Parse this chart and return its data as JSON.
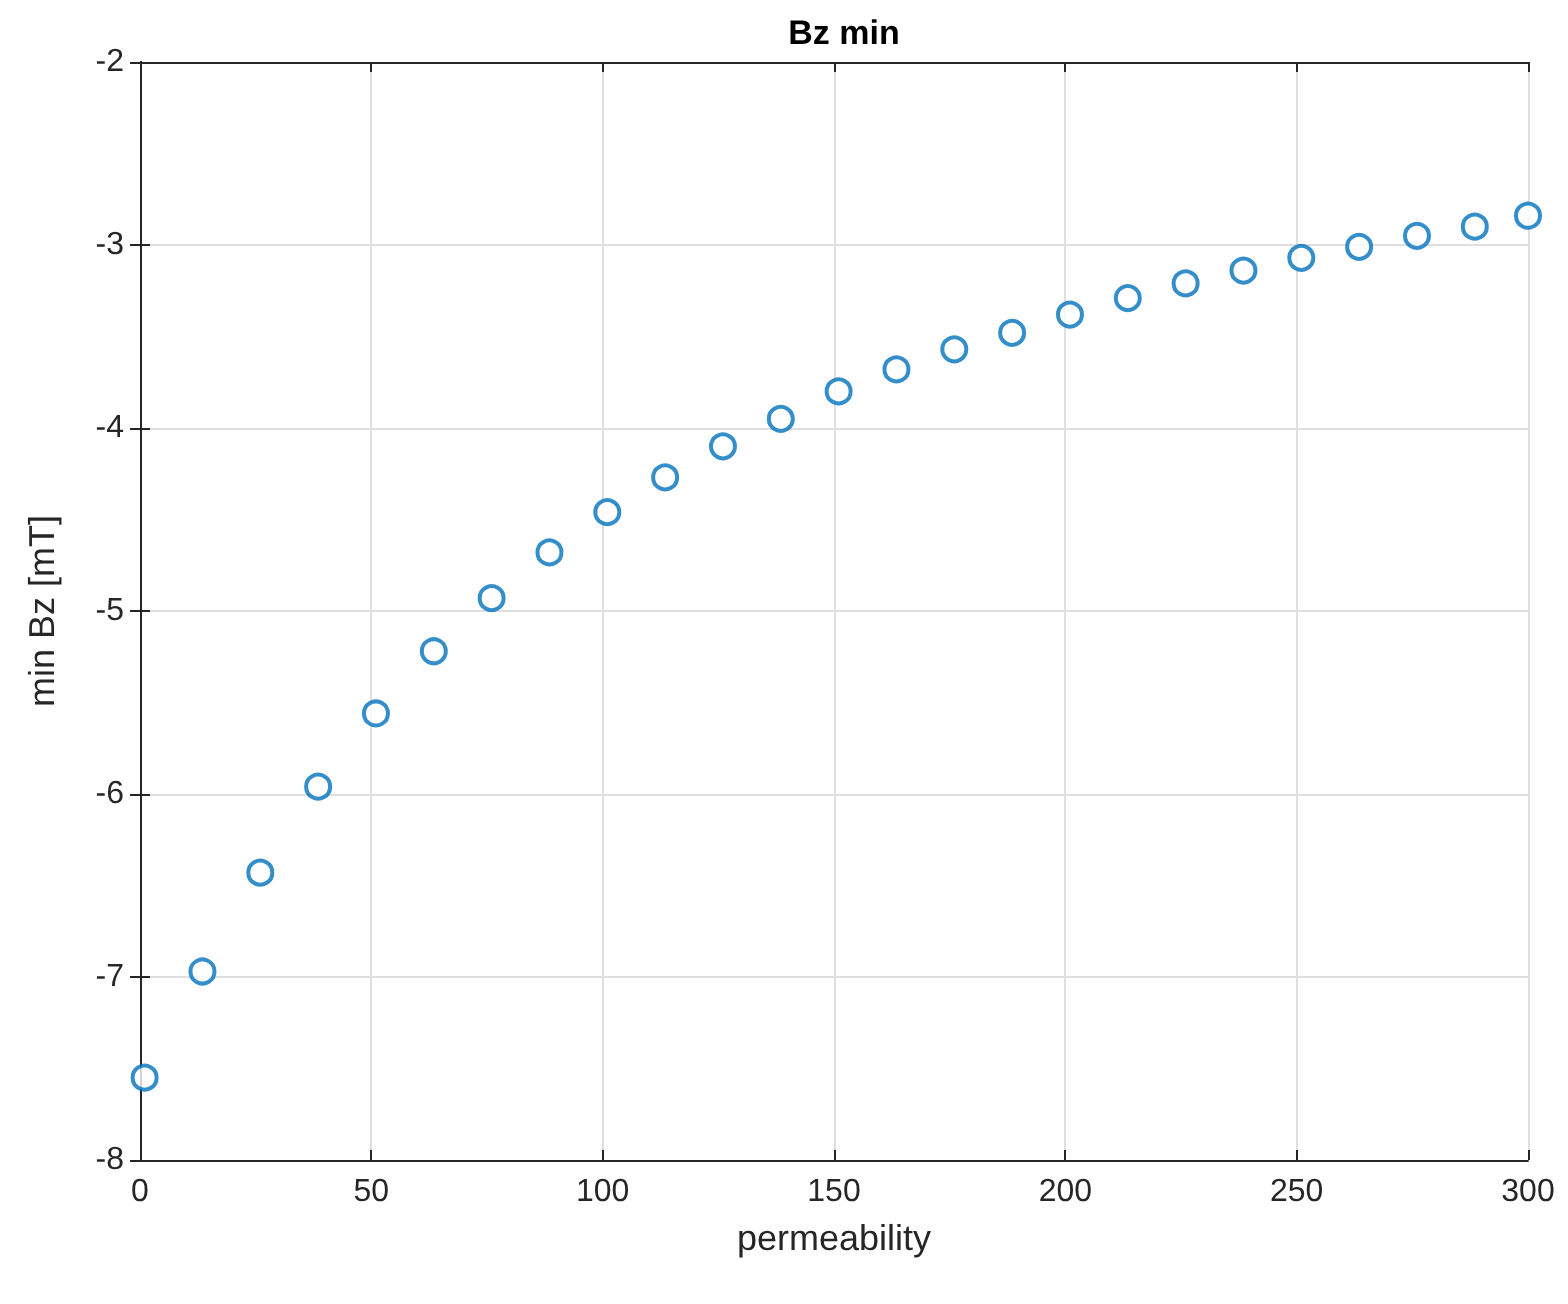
{
  "chart_data": {
    "type": "scatter",
    "title": "Bz min",
    "xlabel": "permeability",
    "ylabel": "min Bz [mT]",
    "x": [
      1,
      13.5,
      26,
      38.5,
      51,
      63.5,
      76,
      88.5,
      101,
      113.5,
      126,
      138.5,
      151,
      163.5,
      176,
      188.5,
      201,
      213.5,
      226,
      238.5,
      251,
      263.5,
      276,
      288.5,
      300
    ],
    "values": [
      -7.55,
      -6.97,
      -6.43,
      -5.96,
      -5.56,
      -5.22,
      -4.93,
      -4.68,
      -4.46,
      -4.27,
      -4.1,
      -3.95,
      -3.8,
      -3.68,
      -3.57,
      -3.48,
      -3.38,
      -3.29,
      -3.21,
      -3.14,
      -3.07,
      -3.01,
      -2.95,
      -2.9,
      -2.84
    ],
    "color": "#0072bd",
    "marker": "circle",
    "xlim": [
      0,
      300
    ],
    "xticks": [
      0,
      50,
      100,
      150,
      200,
      250,
      300
    ],
    "ylim": [
      -8,
      -2
    ],
    "yticks": [
      -8,
      -7,
      -6,
      -5,
      -4,
      -3,
      -2
    ],
    "grid": true
  }
}
